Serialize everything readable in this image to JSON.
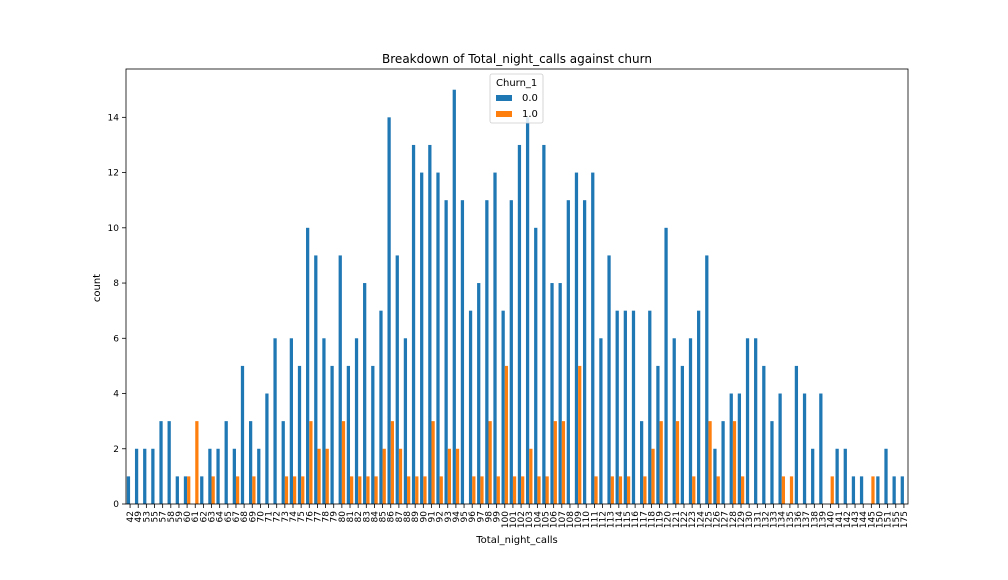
{
  "chart_data": {
    "type": "bar",
    "title": "Breakdown of Total_night_calls against churn",
    "xlabel": "Total_night_calls",
    "ylabel": "count",
    "ylim": [
      0,
      15.75
    ],
    "yticks": [
      0,
      2,
      4,
      6,
      8,
      10,
      12,
      14
    ],
    "legend": {
      "title": "Churn_1",
      "placement": "top-center"
    },
    "categories": [
      "42",
      "49",
      "53",
      "55",
      "57",
      "58",
      "59",
      "60",
      "61",
      "62",
      "63",
      "64",
      "65",
      "67",
      "68",
      "69",
      "70",
      "71",
      "72",
      "73",
      "74",
      "75",
      "76",
      "77",
      "78",
      "79",
      "80",
      "81",
      "82",
      "83",
      "84",
      "85",
      "86",
      "87",
      "88",
      "89",
      "90",
      "91",
      "92",
      "93",
      "94",
      "95",
      "96",
      "97",
      "98",
      "99",
      "100",
      "101",
      "102",
      "103",
      "104",
      "105",
      "106",
      "107",
      "108",
      "109",
      "110",
      "111",
      "112",
      "113",
      "114",
      "115",
      "116",
      "117",
      "118",
      "119",
      "120",
      "121",
      "122",
      "123",
      "124",
      "125",
      "126",
      "127",
      "128",
      "129",
      "130",
      "131",
      "132",
      "133",
      "134",
      "135",
      "136",
      "137",
      "138",
      "139",
      "140",
      "141",
      "142",
      "143",
      "144",
      "145",
      "150",
      "151",
      "155",
      "175"
    ],
    "series": [
      {
        "name": "0.0",
        "color": "#1f77b4",
        "values": [
          1,
          2,
          2,
          2,
          3,
          3,
          1,
          1,
          0,
          1,
          2,
          2,
          3,
          2,
          5,
          3,
          2,
          4,
          6,
          3,
          6,
          5,
          10,
          9,
          6,
          5,
          9,
          5,
          6,
          8,
          5,
          7,
          14,
          9,
          6,
          13,
          12,
          13,
          12,
          11,
          15,
          11,
          7,
          8,
          11,
          12,
          7,
          11,
          13,
          14,
          10,
          13,
          8,
          8,
          11,
          12,
          11,
          12,
          6,
          9,
          7,
          7,
          7,
          3,
          7,
          5,
          10,
          6,
          5,
          6,
          7,
          9,
          2,
          3,
          4,
          4,
          6,
          6,
          5,
          3,
          4,
          0,
          5,
          4,
          2,
          4,
          0,
          2,
          2,
          1,
          1,
          0,
          1,
          2,
          1,
          1
        ]
      },
      {
        "name": "1.0",
        "color": "#ff7f0e",
        "values": [
          0,
          0,
          0,
          0,
          0,
          0,
          0,
          1,
          3,
          0,
          1,
          0,
          0,
          1,
          0,
          1,
          0,
          0,
          0,
          1,
          1,
          1,
          3,
          2,
          2,
          0,
          3,
          1,
          1,
          1,
          1,
          2,
          3,
          2,
          1,
          1,
          1,
          3,
          1,
          2,
          2,
          0,
          1,
          1,
          3,
          1,
          5,
          1,
          1,
          2,
          1,
          1,
          3,
          3,
          0,
          5,
          0,
          1,
          0,
          1,
          1,
          1,
          0,
          1,
          2,
          3,
          0,
          3,
          0,
          1,
          0,
          3,
          1,
          0,
          3,
          1,
          0,
          0,
          0,
          0,
          1,
          1,
          0,
          0,
          0,
          0,
          1,
          0,
          0,
          0,
          0,
          1,
          0,
          0,
          0,
          0
        ]
      }
    ]
  }
}
